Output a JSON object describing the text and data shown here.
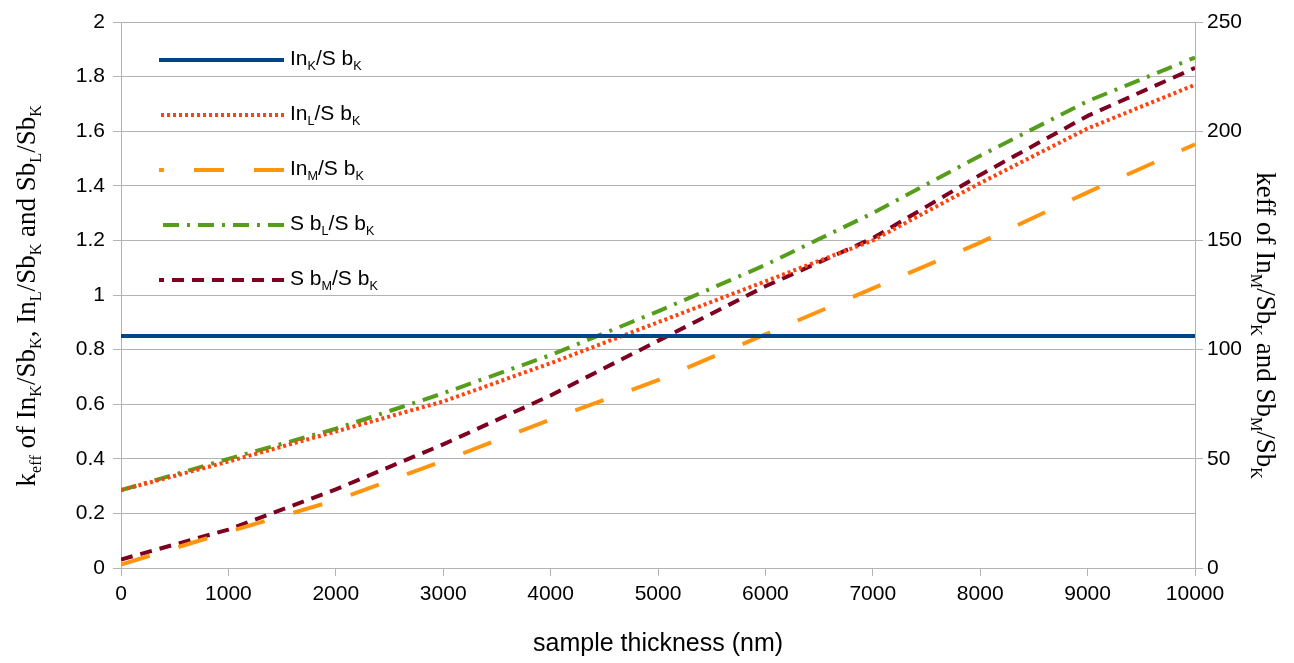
{
  "chart_data": {
    "type": "line",
    "xlabel": "sample thickness (nm)",
    "ylabel": "k$_{eff}$ of In$_{K}$/Sb$_{K}$, In$_{L}$/Sb$_{K}$ and Sb$_{L}$/Sb$_{K}$",
    "y2label": "keff of In$_{M}$/Sb$_{K}$ and Sb$_{M}$/Sb$_{K}$",
    "x": [
      0,
      1000,
      2000,
      3000,
      4000,
      5000,
      6000,
      7000,
      8000,
      9000,
      10000
    ],
    "xlim": [
      0,
      10000
    ],
    "xticks": [
      0,
      1000,
      2000,
      3000,
      4000,
      5000,
      6000,
      7000,
      8000,
      9000,
      10000
    ],
    "ylim": [
      0,
      2
    ],
    "yticks": [
      0,
      0.2,
      0.4,
      0.6,
      0.8,
      1,
      1.2,
      1.4,
      1.6,
      1.8,
      2
    ],
    "y2lim": [
      0,
      250
    ],
    "y2ticks": [
      0,
      50,
      100,
      150,
      200,
      250
    ],
    "grid": "y",
    "legend": "top left",
    "marker": "none",
    "series": [
      {
        "name": "In$_{K}$/S b$_{K}$",
        "color": "#004586",
        "line_style": "solid",
        "values": [
          0.85,
          0.85,
          0.85,
          0.85,
          0.85,
          0.85,
          0.85,
          0.85,
          0.85,
          0.85,
          0.85
        ]
      },
      {
        "name": "In$_{L}$/S b$_{K}$",
        "color": "#ff420e",
        "line_style": "dotted",
        "values": [
          0.285,
          0.39,
          0.5,
          0.61,
          0.75,
          0.9,
          1.05,
          1.2,
          1.41,
          1.61,
          1.77
        ]
      },
      {
        "name": "In$_{M}$/S b$_{K}$",
        "color": "#ff950e",
        "line_style": "dashed",
        "axis": "y2",
        "values": [
          1.6,
          16.6,
          31,
          49,
          68,
          86,
          107,
          128,
          149,
          172,
          194
        ]
      },
      {
        "name": "S b$_{L}$/S b$_{K}$",
        "color": "#579d1c",
        "line_style": "dashdot",
        "values": [
          0.285,
          0.4,
          0.51,
          0.64,
          0.78,
          0.94,
          1.11,
          1.3,
          1.51,
          1.71,
          1.87
        ]
      },
      {
        "name": "S b$_{M}$/S b$_{K}$",
        "color": "#7e0021",
        "line_style": "dashed",
        "axis": "y2",
        "values": [
          3.9,
          17.6,
          36,
          56.6,
          79,
          104,
          129,
          151,
          180,
          207,
          229
        ]
      }
    ]
  }
}
